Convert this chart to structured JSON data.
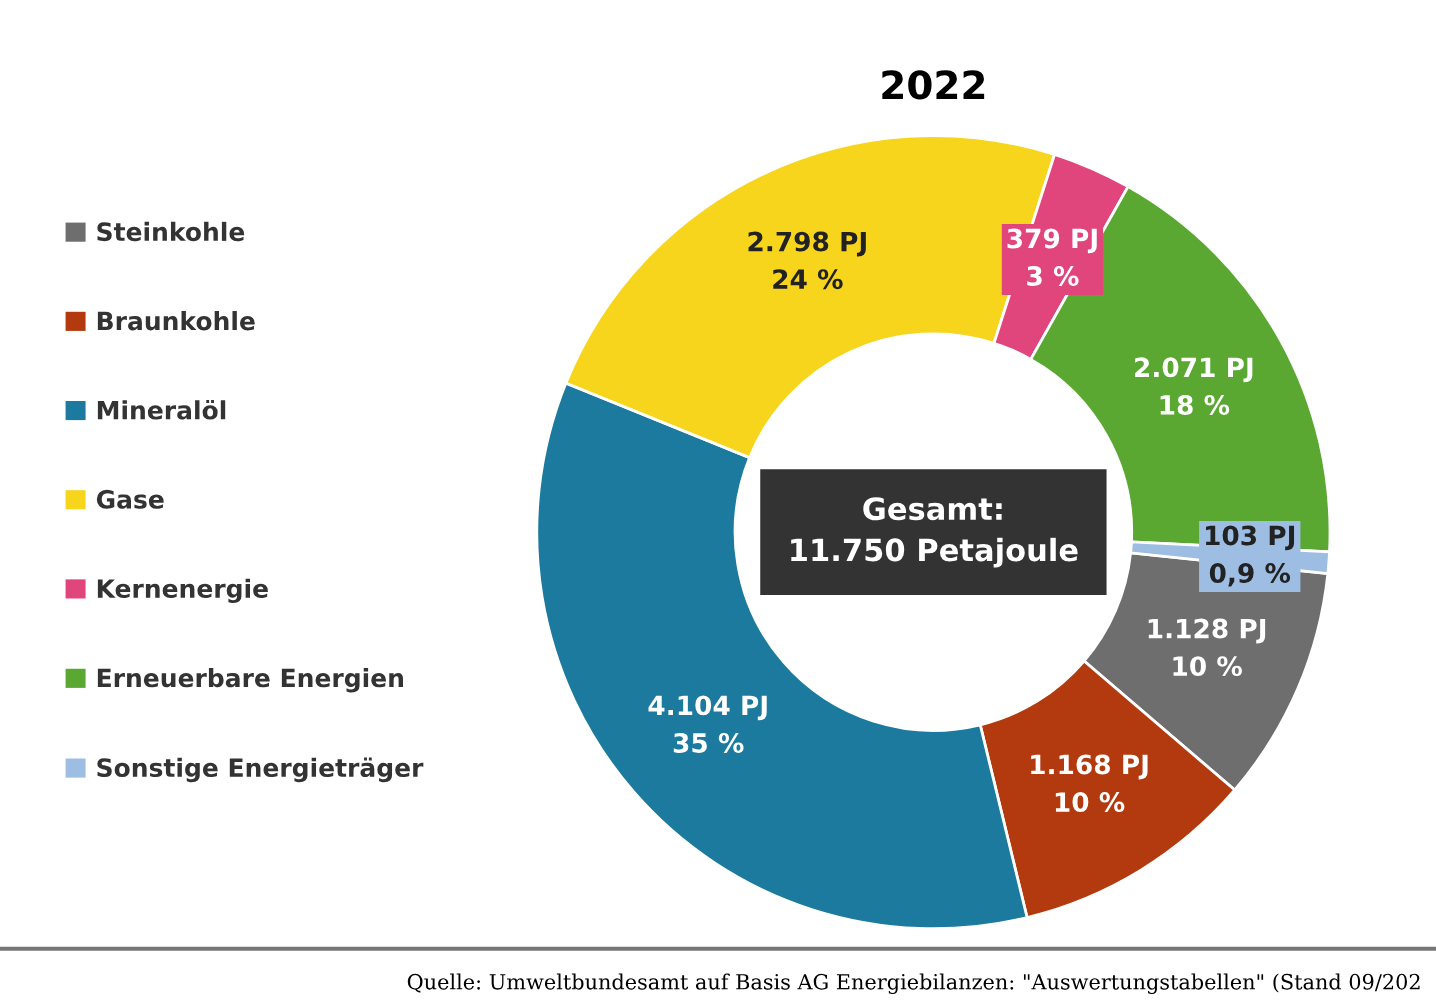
{
  "chart_data": {
    "type": "donut",
    "title": "2022",
    "categories": [
      "Steinkohle",
      "Braunkohle",
      "Mineralöl",
      "Gase",
      "Kernenergie",
      "Erneuerbare Energien",
      "Sonstige Energieträger"
    ],
    "values": [
      1128,
      1168,
      4104,
      2798,
      379,
      2071,
      103
    ],
    "colors": [
      "#6e6e6e",
      "#b33a0e",
      "#1b7a9e",
      "#f7d51d",
      "#e0457b",
      "#5aa832",
      "#9dbde3"
    ],
    "value_labels": [
      "1.128 PJ\n10 %",
      "1.168 PJ\n10 %",
      "4.104 PJ\n35 %",
      "2.798 PJ\n24 %",
      "379 PJ\n3 %",
      "2.071 PJ\n18 %",
      "103 PJ\n0,9 %"
    ],
    "legend": "left",
    "annotations": [
      "Gesamt:\n11.750 Petajoule",
      "Quelle: Umweltbundesamt auf Basis AG Energiebilanzen: \"Auswertungstabellen\" (Stand 09/202"
    ]
  }
}
